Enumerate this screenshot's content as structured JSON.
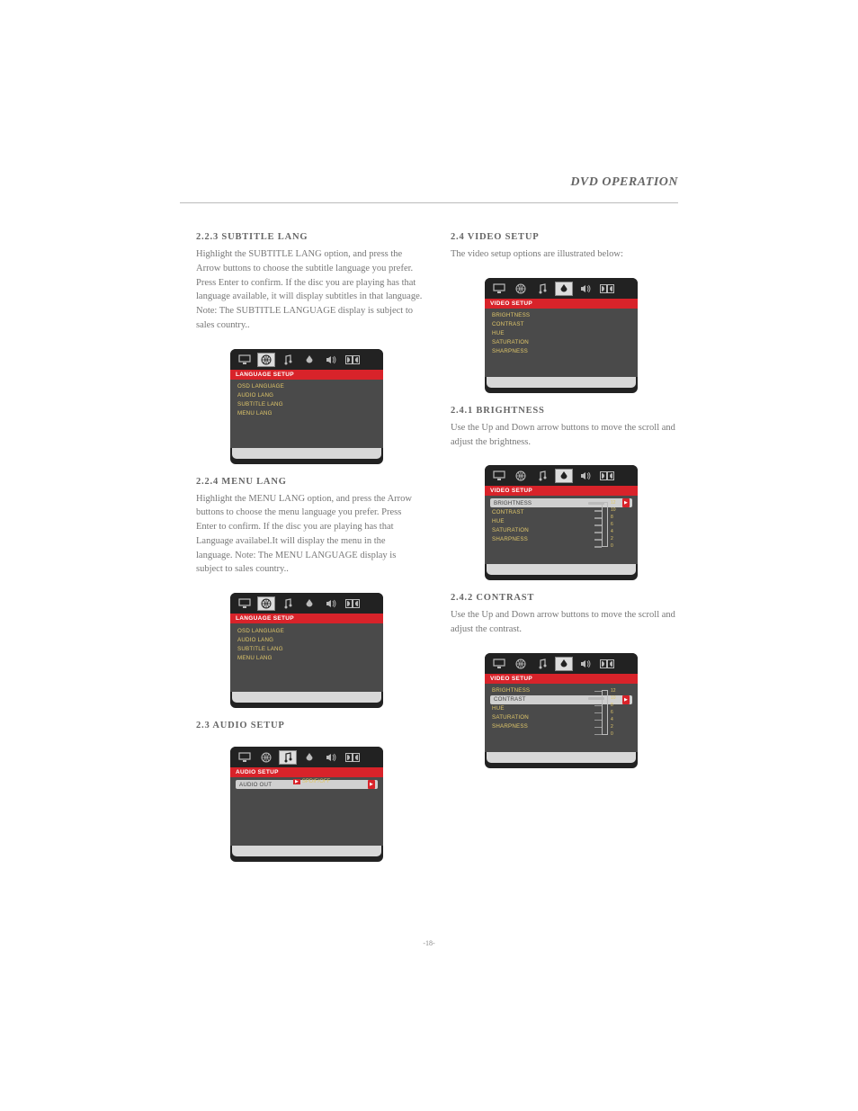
{
  "header": {
    "title": "DVD OPERATION"
  },
  "page_number": "-18-",
  "colors": {
    "osd_bg": "#222222",
    "osd_body": "#4a4a4a",
    "osd_accent": "#d8232a",
    "osd_text": "#e0c76a",
    "osd_sel_bg": "#d0d0d0"
  },
  "left": {
    "s1": {
      "head": "2.2.3   SUBTITLE LANG",
      "text": "Highlight  the SUBTITLE LANG option, and press the Arrow buttons to choose the subtitle language you prefer. Press Enter to confirm. If the disc you are playing has that language available, it will display subtitles in that language. Note: The SUBTITLE  LANGUAGE  display is subject to sales country.."
    },
    "osd1": {
      "title": "LANGUAGE SETUP",
      "items": [
        "OSD LANGUAGE",
        "AUDIO LANG",
        "SUBTITLE LANG",
        "MENU LANG"
      ],
      "active_tab": 1
    },
    "s2": {
      "head": "2.2.4   MENU LANG",
      "text": "Highlight the MENU LANG option, and press the Arrow buttons to choose the menu language you prefer. Press Enter to confirm. If the disc you are playing has that Language availabel.It will display the menu in the language.\nNote: The  MENU LANGUAGE  display  is subject  to sales country.."
    },
    "osd2": {
      "title": "LANGUAGE SETUP",
      "items": [
        "OSD LANGUAGE",
        "AUDIO LANG",
        "SUBTITLE LANG",
        "MENU LANG"
      ],
      "active_tab": 1
    },
    "s3": {
      "head": "2.3  AUDIO SETUP"
    },
    "osd3": {
      "title": "AUDIO SETUP",
      "items": [
        "AUDIO OUT"
      ],
      "sel_index": 0,
      "sub_label": "SPDIF/OFF",
      "active_tab": 2
    }
  },
  "right": {
    "s1": {
      "head": "2.4  VIDEO SETUP",
      "text": "The video setup options are illustrated below:"
    },
    "osd1": {
      "title": "VIDEO SETUP",
      "items": [
        "BRIGHTNESS",
        "CONTRAST",
        "HUE",
        "SATURATION",
        "SHARPNESS"
      ],
      "active_tab": 3
    },
    "s2": {
      "head": "2.4.1  BRIGHTNESS",
      "text": "Use the Up and Down arrow buttons to move the scroll and adjust the  brightness."
    },
    "osd2": {
      "title": "VIDEO SETUP",
      "items": [
        "BRIGHTNESS",
        "CONTRAST",
        "HUE",
        "SATURATION",
        "SHARPNESS"
      ],
      "sel_index": 0,
      "active_tab": 3,
      "slider": {
        "ticks": [
          "12",
          "10",
          "8",
          "6",
          "4",
          "2",
          "0"
        ],
        "knob_at": 0
      }
    },
    "s3": {
      "head": "2.4.2  CONTRAST",
      "text": "Use the Up and Down arrow buttons to move the scroll and adjust the contrast."
    },
    "osd3": {
      "title": "VIDEO SETUP",
      "items": [
        "BRIGHTNESS",
        "CONTRAST",
        "HUE",
        "SATURATION",
        "SHARPNESS"
      ],
      "sel_index": 1,
      "active_tab": 3,
      "slider": {
        "ticks": [
          "12",
          "10",
          "8",
          "6",
          "4",
          "2",
          "0"
        ],
        "knob_at": 1
      }
    }
  },
  "icons": [
    "monitor",
    "globe",
    "note",
    "drop",
    "speaker",
    "dolby"
  ]
}
